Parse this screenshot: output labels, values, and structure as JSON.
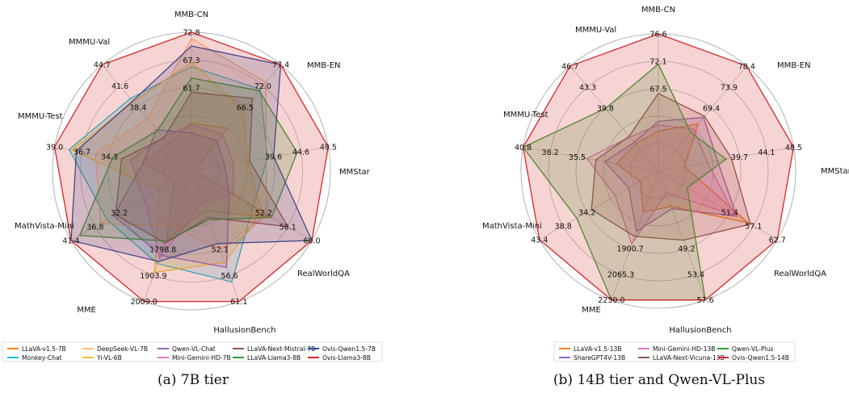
{
  "chart_data": [
    {
      "type": "radar",
      "caption": "(a) 7B tier",
      "axes": [
        "MMB-CN",
        "MMB-EN",
        "MMStar",
        "RealWorldQA",
        "HallusionBench",
        "MME",
        "MathVista-Mini",
        "MMMU-Test",
        "MMMU-Val"
      ],
      "ticks": [
        [
          "61.7",
          "67.3",
          "72.8"
        ],
        [
          "66.5",
          "72.0",
          "77.4"
        ],
        [
          "39.6",
          "44.6",
          "49.5"
        ],
        [
          "52.2",
          "56.1",
          "60.0"
        ],
        [
          "52.1",
          "56.6",
          "61.1"
        ],
        [
          "1798.8",
          "1903.9",
          "2009.0"
        ],
        [
          "32.2",
          "36.8",
          "41.4"
        ],
        [
          "34.3",
          "36.7",
          "39.0"
        ],
        [
          "38.4",
          "41.6",
          "44.7"
        ]
      ],
      "ranges": [
        [
          50.6,
          72.8
        ],
        [
          55.6,
          77.4
        ],
        [
          29.7,
          49.5
        ],
        [
          44.4,
          60.0
        ],
        [
          43.1,
          61.1
        ],
        [
          1588.6,
          2009.0
        ],
        [
          23.0,
          41.4
        ],
        [
          29.6,
          39.0
        ],
        [
          32.1,
          44.7
        ]
      ],
      "series": [
        {
          "name": "LLaVA-v1.5-7B",
          "color": "#ff7f0e",
          "values": [
            58.3,
            64.3,
            30.3,
            54.8,
            48.6,
            1808,
            25.6,
            33.0,
            35.3
          ]
        },
        {
          "name": "Monkey-Chat",
          "color": "#17becf",
          "values": [
            67.3,
            72.4,
            40.7,
            52.4,
            58.4,
            1887,
            35.9,
            38.0,
            40.7
          ]
        },
        {
          "name": "DeepSeek-VL-7B",
          "color": "#ffbb78",
          "values": [
            71.8,
            73.8,
            40.5,
            54.2,
            53.9,
            1765,
            36.9,
            36.2,
            38.3
          ]
        },
        {
          "name": "Yi-VL-6B",
          "color": "#f1c232",
          "values": [
            68.0,
            68.2,
            37.8,
            53.5,
            55.7,
            1915,
            28.0,
            37.8,
            40.3
          ]
        },
        {
          "name": "Qwen-VL-Chat",
          "color": "#9467bd",
          "values": [
            56.7,
            61.8,
            34.5,
            49.3,
            56.4,
            1860,
            34.9,
            32.9,
            37.0
          ]
        },
        {
          "name": "Mini-Gemini-HD-7B",
          "color": "#e377c2",
          "values": [
            58.0,
            63.2,
            35.8,
            49.8,
            47.4,
            1870,
            30.2,
            33.8,
            36.1
          ]
        },
        {
          "name": "LLaVA-Next-Mistral-7B",
          "color": "#8c564b",
          "values": [
            63.2,
            70.5,
            38.1,
            56.9,
            49.5,
            1821,
            34.6,
            34.4,
            36.0
          ]
        },
        {
          "name": "LLaVA-Llama3-8B",
          "color": "#2ca02c",
          "values": [
            65.5,
            72.1,
            45.0,
            54.8,
            49.8,
            1814,
            40.1,
            35.0,
            36.9
          ]
        },
        {
          "name": "Ovis-Qwen1.5-7B",
          "color": "#1f4e9c",
          "values": [
            70.6,
            77.4,
            41.6,
            60.0,
            53.1,
            1880,
            41.4,
            37.5,
            40.4
          ]
        },
        {
          "name": "Ovis-Llama3-8B",
          "color": "#d62728",
          "values": [
            72.8,
            77.4,
            49.5,
            60.0,
            61.1,
            2009,
            41.4,
            39.0,
            44.7
          ]
        }
      ]
    },
    {
      "type": "radar",
      "caption": "(b) 14B tier and Qwen-VL-Plus",
      "axes": [
        "MMB-CN",
        "MMB-EN",
        "MMStar",
        "RealWorldQA",
        "HallusionBench",
        "MME",
        "MathVista-Mini",
        "MMMU-Test",
        "MMMU-Val"
      ],
      "ticks": [
        [
          "67.5",
          "72.1",
          "76.6"
        ],
        [
          "69.4",
          "73.9",
          "78.4"
        ],
        [
          "39.7",
          "44.1",
          "48.5"
        ],
        [
          "51.4",
          "57.1",
          "62.7"
        ],
        [
          "49.2",
          "53.4",
          "57.6"
        ],
        [
          "1900.7",
          "2065.3",
          "2230.0"
        ],
        [
          "34.2",
          "38.8",
          "43.4"
        ],
        [
          "35.5",
          "38.2",
          "40.8"
        ],
        [
          "39.8",
          "43.3",
          "46.7"
        ]
      ],
      "ranges": [
        [
          58.4,
          76.6
        ],
        [
          60.4,
          78.4
        ],
        [
          30.9,
          48.5
        ],
        [
          40.1,
          62.7
        ],
        [
          40.8,
          57.6
        ],
        [
          1571.5,
          2230.0
        ],
        [
          24.9,
          43.4
        ],
        [
          30.2,
          40.8
        ],
        [
          32.8,
          46.7
        ]
      ],
      "series": [
        {
          "name": "LLaVA-v1.5-13B",
          "color": "#ff7f0e",
          "values": [
            63.7,
            68.5,
            34.3,
            57.2,
            45.4,
            1781,
            27.7,
            33.5,
            36.4
          ]
        },
        {
          "name": "ShareGPT4V-13B",
          "color": "#9467bd",
          "values": [
            65.0,
            69.6,
            38.6,
            55.0,
            45.7,
            1880,
            29.5,
            34.4,
            36.6
          ]
        },
        {
          "name": "Mini-Gemini-HD-13B",
          "color": "#e377c2",
          "values": [
            64.5,
            67.6,
            37.3,
            54.6,
            43.7,
            1945,
            31.6,
            35.8,
            37.3
          ]
        },
        {
          "name": "LLaVA-Next-Vicuna-13B",
          "color": "#8c564b",
          "values": [
            68.7,
            69.8,
            40.4,
            57.6,
            49.8,
            1905,
            35.3,
            35.1,
            37.4
          ]
        },
        {
          "name": "Qwen-VL-Plus",
          "color": "#2ca02c",
          "values": [
            72.6,
            67.0,
            39.7,
            45.6,
            57.6,
            2230,
            37.6,
            40.8,
            41.1
          ]
        },
        {
          "name": "Ovis-Qwen1.5-14B",
          "color": "#d62728",
          "values": [
            76.6,
            78.4,
            48.5,
            62.7,
            57.6,
            2230,
            43.4,
            40.8,
            46.7
          ]
        }
      ]
    }
  ]
}
